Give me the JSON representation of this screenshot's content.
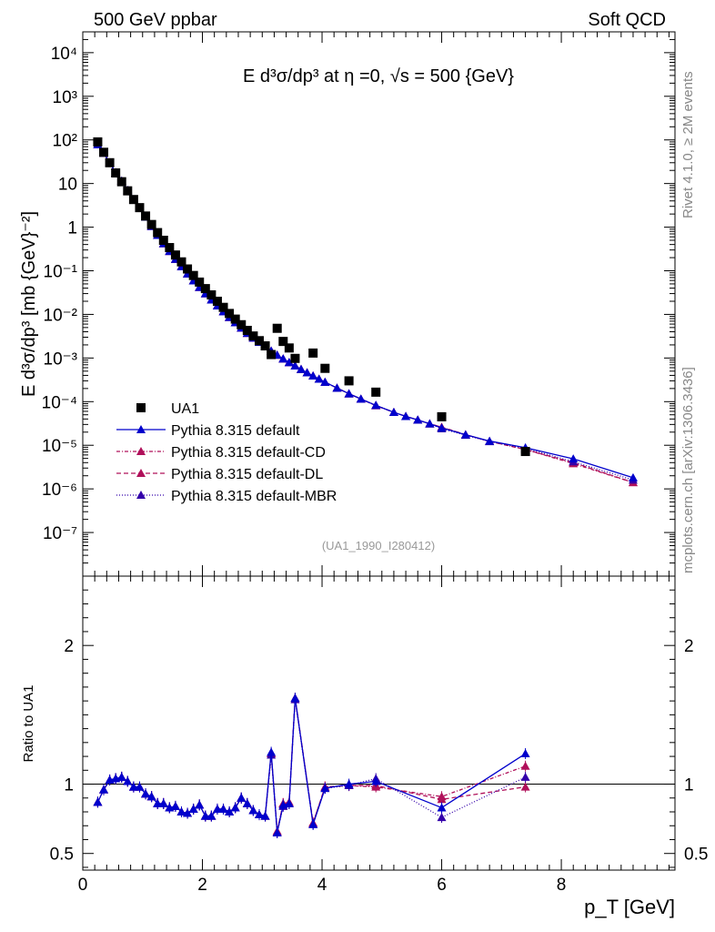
{
  "header": {
    "left": "500 GeV ppbar",
    "right": "Soft QCD",
    "side_top": "Rivet 4.1.0, ≥ 2M events",
    "side_bottom": "mcplots.cern.ch [arXiv:1306.3436]",
    "ref_label": "(UA1_1990_I280412)"
  },
  "colors": {
    "data": "#000000",
    "default": "#0000cc",
    "cd": "#b0105a",
    "dl": "#b0105a",
    "mbr": "#3300aa"
  },
  "chart_data": [
    {
      "type": "scatter",
      "title": "E  d³σ/dp³ at η =0, √s = 500 {GeV}",
      "ylabel": "E d³σ/dp³ [mb {GeV}⁻²]",
      "yscale": "log",
      "ylim": [
        1e-08,
        30000.0
      ],
      "xlim": [
        0,
        9.9
      ],
      "y_tick_labels": [
        "10⁻⁷",
        "10⁻⁶",
        "10⁻⁵",
        "10⁻⁴",
        "10⁻³",
        "10⁻²",
        "10⁻¹",
        "1",
        "10",
        "10²",
        "10³",
        "10⁴"
      ],
      "legend": [
        {
          "label": "UA1",
          "series": "data"
        },
        {
          "label": "Pythia 8.315 default",
          "series": "default"
        },
        {
          "label": "Pythia 8.315 default-CD",
          "series": "cd"
        },
        {
          "label": "Pythia 8.315 default-DL",
          "series": "dl"
        },
        {
          "label": "Pythia 8.315 default-MBR",
          "series": "mbr"
        }
      ],
      "x": [
        0.25,
        0.35,
        0.45,
        0.55,
        0.65,
        0.75,
        0.85,
        0.95,
        1.05,
        1.15,
        1.25,
        1.35,
        1.45,
        1.55,
        1.65,
        1.75,
        1.85,
        1.95,
        2.05,
        2.15,
        2.25,
        2.35,
        2.45,
        2.55,
        2.65,
        2.75,
        2.85,
        2.95,
        3.05,
        3.15,
        3.25,
        3.35,
        3.45,
        3.55,
        3.85,
        4.05,
        4.45,
        4.9,
        6.0,
        7.4
      ],
      "data_values": [
        90,
        52,
        30,
        17.5,
        11,
        6.8,
        4.3,
        2.8,
        1.8,
        1.15,
        0.75,
        0.5,
        0.34,
        0.23,
        0.16,
        0.11,
        0.078,
        0.055,
        0.039,
        0.028,
        0.02,
        0.0145,
        0.0105,
        0.0078,
        0.0058,
        0.0043,
        0.0032,
        0.0025,
        0.0019,
        0.0012,
        0.0048,
        0.0024,
        0.0017,
        0.00098,
        0.0013,
        0.00058,
        0.0003,
        0.000165,
        4.5e-05,
        7.2e-06
      ],
      "model_x": [
        0.25,
        0.35,
        0.45,
        0.55,
        0.65,
        0.75,
        0.85,
        0.95,
        1.05,
        1.15,
        1.25,
        1.35,
        1.45,
        1.55,
        1.65,
        1.75,
        1.85,
        1.95,
        2.05,
        2.15,
        2.25,
        2.35,
        2.45,
        2.55,
        2.65,
        2.75,
        2.85,
        2.95,
        3.05,
        3.15,
        3.25,
        3.35,
        3.45,
        3.55,
        3.65,
        3.75,
        3.85,
        3.95,
        4.05,
        4.25,
        4.45,
        4.65,
        4.9,
        5.2,
        5.4,
        5.6,
        5.8,
        6.0,
        6.4,
        6.8,
        7.4,
        8.2,
        9.2
      ],
      "model_default": [
        78,
        50,
        30,
        17.8,
        11.4,
        7,
        4.2,
        2.7,
        1.7,
        1.05,
        0.65,
        0.42,
        0.28,
        0.185,
        0.125,
        0.085,
        0.059,
        0.042,
        0.03,
        0.0215,
        0.0157,
        0.0116,
        0.0086,
        0.0065,
        0.0049,
        0.0037,
        0.0029,
        0.0023,
        0.00182,
        0.00145,
        0.00117,
        0.00096,
        0.00079,
        0.00066,
        0.00055,
        0.00046,
        0.00039,
        0.00033,
        0.00028,
        0.000205,
        0.000152,
        0.000115,
        8.2e-05,
        5.7e-05,
        4.6e-05,
        3.8e-05,
        3.1e-05,
        2.5e-05,
        1.75e-05,
        1.25e-05,
        8.8e-06,
        4.9e-06,
        1.8e-06
      ],
      "model_cd": [
        78,
        50,
        30,
        17.8,
        11.4,
        7,
        4.2,
        2.7,
        1.7,
        1.05,
        0.65,
        0.42,
        0.28,
        0.185,
        0.125,
        0.085,
        0.059,
        0.042,
        0.03,
        0.0215,
        0.0157,
        0.0116,
        0.0086,
        0.0065,
        0.0049,
        0.0037,
        0.0029,
        0.0023,
        0.00182,
        0.00145,
        0.00117,
        0.00096,
        0.00079,
        0.00066,
        0.00055,
        0.00046,
        0.00039,
        0.00033,
        0.00028,
        0.000205,
        0.000152,
        0.000115,
        8.1e-05,
        5.7e-05,
        4.6e-05,
        3.8e-05,
        3.1e-05,
        2.6e-05,
        1.75e-05,
        1.23e-05,
        8e-06,
        3.8e-06,
        1.4e-06
      ],
      "model_dl": [
        78,
        50,
        30,
        17.8,
        11.4,
        7,
        4.2,
        2.7,
        1.7,
        1.05,
        0.65,
        0.42,
        0.28,
        0.185,
        0.125,
        0.085,
        0.059,
        0.042,
        0.03,
        0.0215,
        0.0157,
        0.0116,
        0.0086,
        0.0065,
        0.0049,
        0.0037,
        0.0029,
        0.0023,
        0.00182,
        0.00145,
        0.00117,
        0.00096,
        0.00079,
        0.00066,
        0.00055,
        0.00046,
        0.00039,
        0.00033,
        0.00028,
        0.000205,
        0.000152,
        0.000115,
        8.1e-05,
        5.7e-05,
        4.6e-05,
        3.8e-05,
        3.1e-05,
        2.6e-05,
        1.75e-05,
        1.23e-05,
        8e-06,
        4e-06,
        1.4e-06
      ],
      "model_mbr": [
        78,
        50,
        30,
        17.8,
        11.4,
        7,
        4.2,
        2.7,
        1.7,
        1.05,
        0.65,
        0.42,
        0.28,
        0.185,
        0.125,
        0.085,
        0.059,
        0.042,
        0.03,
        0.0215,
        0.0157,
        0.0116,
        0.0086,
        0.0065,
        0.0049,
        0.0037,
        0.0029,
        0.0023,
        0.00182,
        0.00145,
        0.00117,
        0.00096,
        0.00079,
        0.00066,
        0.00055,
        0.00046,
        0.00039,
        0.00033,
        0.00028,
        0.000205,
        0.000152,
        0.000115,
        8.3e-05,
        5.7e-05,
        4.6e-05,
        3.8e-05,
        3.1e-05,
        2.4e-05,
        1.7e-05,
        1.22e-05,
        8.5e-06,
        4.2e-06,
        1.6e-06
      ]
    },
    {
      "type": "line",
      "ylabel": "Ratio to UA1",
      "xlabel": "p_T [GeV]",
      "ylim": [
        0.38,
        2.5
      ],
      "y_ticks": [
        0.5,
        1,
        2
      ],
      "y_tick_labels": [
        "0.5",
        "1",
        "2"
      ],
      "x_ticks": [
        0,
        2,
        4,
        6,
        8
      ],
      "x_tick_labels": [
        "0",
        "2",
        "4",
        "6",
        "8"
      ],
      "x": [
        0.25,
        0.35,
        0.45,
        0.55,
        0.65,
        0.75,
        0.85,
        0.95,
        1.05,
        1.15,
        1.25,
        1.35,
        1.45,
        1.55,
        1.65,
        1.75,
        1.85,
        1.95,
        2.05,
        2.15,
        2.25,
        2.35,
        2.45,
        2.55,
        2.65,
        2.75,
        2.85,
        2.95,
        3.05,
        3.15,
        3.25,
        3.35,
        3.45,
        3.55,
        3.85,
        4.05,
        4.45,
        4.9,
        6.0,
        7.4
      ],
      "ratio_default": [
        0.87,
        0.96,
        1.03,
        1.04,
        1.05,
        1.02,
        0.98,
        0.98,
        0.93,
        0.91,
        0.86,
        0.86,
        0.83,
        0.84,
        0.8,
        0.79,
        0.82,
        0.85,
        0.77,
        0.77,
        0.82,
        0.82,
        0.8,
        0.83,
        0.9,
        0.86,
        0.81,
        0.78,
        0.77,
        1.23,
        0.65,
        0.85,
        0.86,
        1.62,
        0.71,
        0.97,
        1.0,
        1.02,
        0.83,
        1.22
      ],
      "ratio_cd": [
        0.87,
        0.96,
        1.03,
        1.04,
        1.05,
        1.02,
        0.98,
        0.98,
        0.93,
        0.91,
        0.86,
        0.86,
        0.83,
        0.84,
        0.8,
        0.79,
        0.82,
        0.85,
        0.77,
        0.77,
        0.82,
        0.82,
        0.8,
        0.83,
        0.9,
        0.86,
        0.81,
        0.78,
        0.77,
        1.22,
        0.66,
        0.86,
        0.86,
        1.62,
        0.72,
        0.98,
        0.99,
        0.98,
        0.91,
        1.13
      ],
      "ratio_dl": [
        0.87,
        0.96,
        1.03,
        1.04,
        1.05,
        1.02,
        0.98,
        0.98,
        0.93,
        0.91,
        0.86,
        0.86,
        0.83,
        0.84,
        0.8,
        0.79,
        0.82,
        0.85,
        0.77,
        0.77,
        0.82,
        0.82,
        0.8,
        0.83,
        0.9,
        0.86,
        0.81,
        0.78,
        0.77,
        1.22,
        0.66,
        0.86,
        0.87,
        1.62,
        0.72,
        0.98,
        0.99,
        0.99,
        0.89,
        0.98
      ],
      "ratio_mbr": [
        0.87,
        0.96,
        1.03,
        1.04,
        1.05,
        1.02,
        0.98,
        0.98,
        0.93,
        0.91,
        0.86,
        0.86,
        0.83,
        0.84,
        0.8,
        0.79,
        0.82,
        0.85,
        0.77,
        0.77,
        0.82,
        0.82,
        0.8,
        0.83,
        0.9,
        0.86,
        0.81,
        0.78,
        0.77,
        1.21,
        0.65,
        0.84,
        0.86,
        1.61,
        0.71,
        0.97,
        0.99,
        1.04,
        0.76,
        1.05
      ]
    }
  ]
}
